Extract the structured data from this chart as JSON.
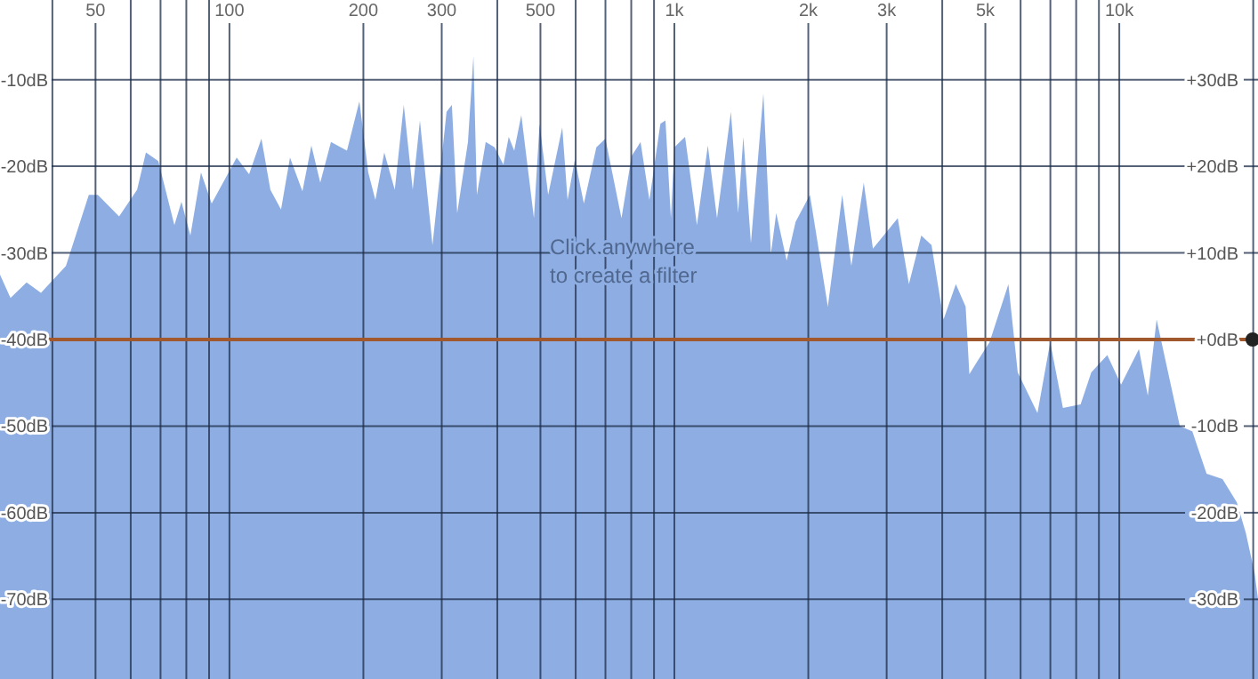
{
  "chart_data": {
    "type": "area",
    "series": [
      {
        "color": "#8eaee3",
        "x": [
          30.5,
          32.2,
          35,
          37.7,
          42.9,
          48.3,
          50.6,
          56.5,
          62,
          64.9,
          69.2,
          75.2,
          78,
          81.7,
          86.3,
          91.2,
          103.8,
          110.7,
          118,
          123.6,
          130.6,
          136.8,
          145.9,
          152.8,
          160,
          169.1,
          183.7,
          195.9,
          205.1,
          212.8,
          222.8,
          235.3,
          246.5,
          258.2,
          268,
          286,
          307.6,
          316.2,
          325,
          343.6,
          353.5,
          359.9,
          376.7,
          394.4,
          412.8,
          424.3,
          436.5,
          452.9,
          483.5,
          497.7,
          520.4,
          559.8,
          575.4,
          597.6,
          626.1,
          667.8,
          699.8,
          760.5,
          801.7,
          839.4,
          878.8,
          930.1,
          955,
          982.3,
          1000,
          1057,
          1124,
          1189,
          1247,
          1340,
          1391,
          1429,
          1486,
          1585,
          1648,
          1694,
          1788,
          1873,
          2017,
          2213,
          2384,
          2499,
          2665,
          2794,
          3177,
          3366,
          3589,
          3784,
          4027,
          4292,
          4515,
          4603,
          4810,
          5110,
          5633,
          5912,
          6548,
          6994,
          7470,
          8185,
          8650,
          9397,
          10093,
          11070,
          11590,
          12130,
          12950,
          13680,
          14590,
          15710,
          17060,
          18370,
          19240,
          20150,
          20500
        ],
        "values": [
          -32.5,
          -35.2,
          -33.4,
          -34.6,
          -31.5,
          -23.3,
          -23.3,
          -25.8,
          -22.7,
          -18.4,
          -19.4,
          -26.8,
          -24.1,
          -28,
          -20.7,
          -24.3,
          -19,
          -20.9,
          -16.8,
          -22.7,
          -25,
          -19,
          -22.9,
          -17.6,
          -21.9,
          -17.2,
          -18.2,
          -12.5,
          -20.7,
          -23.9,
          -18.4,
          -22.7,
          -12.9,
          -22.7,
          -14.7,
          -29.1,
          -13.7,
          -12.9,
          -25.4,
          -17.2,
          -7.3,
          -23.3,
          -17.2,
          -17.8,
          -19.8,
          -16.6,
          -18.2,
          -14.1,
          -26,
          -15.1,
          -23.3,
          -15.5,
          -23.9,
          -19.2,
          -24.3,
          -17.8,
          -16.8,
          -26,
          -18.8,
          -17.2,
          -23.9,
          -15.1,
          -14.7,
          -26,
          -17.8,
          -16.6,
          -26.8,
          -17.6,
          -26,
          -13.7,
          -25.4,
          -16.6,
          -28.9,
          -11.6,
          -30.1,
          -25.4,
          -30.9,
          -26.4,
          -23.3,
          -36.2,
          -23.3,
          -31.5,
          -21.9,
          -29.5,
          -26,
          -33.6,
          -28,
          -29.1,
          -37.7,
          -33.6,
          -36.2,
          -44,
          -42.4,
          -40.3,
          -33.6,
          -43.8,
          -48.5,
          -40.3,
          -47.9,
          -47.5,
          -43.8,
          -41.8,
          -45.2,
          -41.1,
          -46.5,
          -37.7,
          -44.4,
          -50,
          -50.6,
          -55.5,
          -56.1,
          -58.8,
          -62.3,
          -67,
          -70
        ]
      }
    ],
    "log": "x",
    "xlim": [
      30.5,
      20500
    ],
    "xticks": [
      {
        "value": 40,
        "label": null
      },
      {
        "value": 50,
        "label": "50"
      },
      {
        "value": 60,
        "label": null
      },
      {
        "value": 70,
        "label": null
      },
      {
        "value": 80,
        "label": null
      },
      {
        "value": 90,
        "label": null
      },
      {
        "value": 100,
        "label": "100"
      },
      {
        "value": 200,
        "label": "200"
      },
      {
        "value": 300,
        "label": "300"
      },
      {
        "value": 400,
        "label": null
      },
      {
        "value": 500,
        "label": "500"
      },
      {
        "value": 600,
        "label": null
      },
      {
        "value": 700,
        "label": null
      },
      {
        "value": 800,
        "label": null
      },
      {
        "value": 900,
        "label": null
      },
      {
        "value": 1000,
        "label": "1k"
      },
      {
        "value": 2000,
        "label": "2k"
      },
      {
        "value": 3000,
        "label": "3k"
      },
      {
        "value": 4000,
        "label": null
      },
      {
        "value": 5000,
        "label": "5k"
      },
      {
        "value": 6000,
        "label": null
      },
      {
        "value": 7000,
        "label": null
      },
      {
        "value": 8000,
        "label": null
      },
      {
        "value": 9000,
        "label": null
      },
      {
        "value": 10000,
        "label": "10k"
      },
      {
        "value": 20000,
        "label": null
      }
    ],
    "ylim": [
      -79.2,
      -0.8
    ],
    "yticks": [
      {
        "value": -10,
        "label": "-10dB"
      },
      {
        "value": -20,
        "label": "-20dB"
      },
      {
        "value": -30,
        "label": "-30dB"
      },
      {
        "value": -40,
        "label": "-40dB"
      },
      {
        "value": -50,
        "label": "-50dB"
      },
      {
        "value": -60,
        "label": "-60dB"
      },
      {
        "value": -70,
        "label": "-70dB"
      }
    ],
    "y2lim": [
      -39.2,
      39.2
    ],
    "y2ticks": [
      {
        "value": 30,
        "label": "+30dB"
      },
      {
        "value": 20,
        "label": "+20dB"
      },
      {
        "value": 10,
        "label": "+10dB"
      },
      {
        "value": 0,
        "label": "+0dB"
      },
      {
        "value": -10,
        "label": "-10dB"
      },
      {
        "value": -20,
        "label": "-20dB"
      },
      {
        "value": -30,
        "label": "-30dB"
      }
    ],
    "ref_lines": [
      {
        "axis": "y2",
        "value": 0,
        "color": "#a0582c"
      }
    ],
    "grid": true,
    "annotations": [
      "Click anywhere\nto create a filter"
    ]
  }
}
